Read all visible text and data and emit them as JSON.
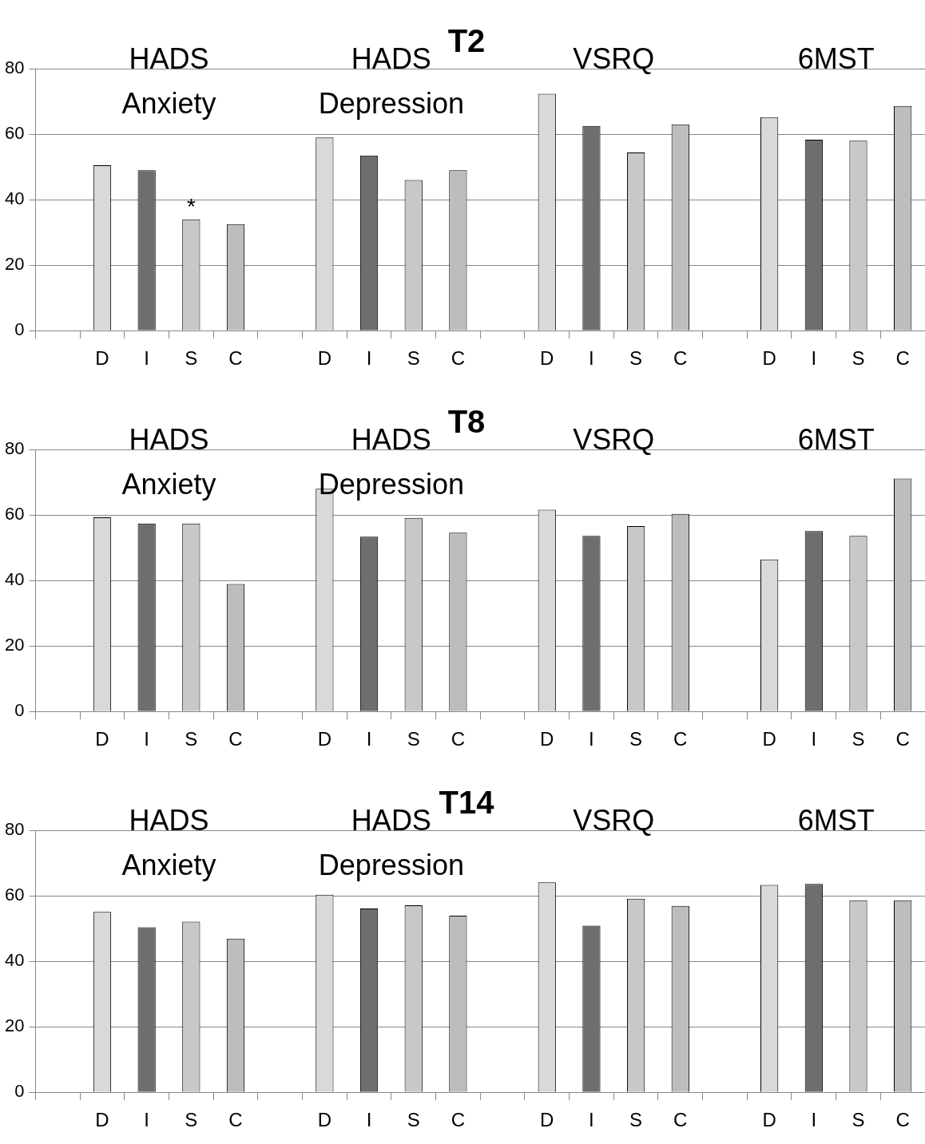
{
  "chart_data": [
    {
      "type": "bar",
      "title": "T2",
      "categories": [
        null,
        "D",
        "I",
        "S",
        "C",
        null,
        "D",
        "I",
        "S",
        "C",
        null,
        "D",
        "I",
        "S",
        "C",
        null,
        "D",
        "I",
        "S",
        "C"
      ],
      "series": [
        {
          "values": [
            null,
            50.5,
            49,
            34,
            32.5,
            null,
            59,
            53.5,
            46,
            49,
            null,
            72.3,
            62.5,
            54.4,
            63,
            null,
            65.2,
            58.3,
            58,
            68.6
          ],
          "colors": [
            null,
            "#d9d9d9",
            "#6e6e6e",
            "#c8c8c8",
            "#bdbdbd",
            null,
            "#d9d9d9",
            "#6e6e6e",
            "#c8c8c8",
            "#bdbdbd",
            null,
            "#d9d9d9",
            "#6e6e6e",
            "#c8c8c8",
            "#bdbdbd",
            null,
            "#d9d9d9",
            "#6e6e6e",
            "#c8c8c8",
            "#bdbdbd"
          ]
        }
      ],
      "ylim": [
        0,
        80
      ],
      "yticks": [
        0,
        20,
        40,
        60,
        80
      ],
      "grid": "y",
      "legend": false,
      "annotations": [
        "HADS Anxiety",
        "HADS Depression",
        "VSRQ",
        "6MST",
        {
          "text": "*",
          "x": "S",
          "y": 34
        }
      ]
    },
    {
      "type": "bar",
      "title": "T8",
      "categories": [
        null,
        "D",
        "I",
        "S",
        "C",
        null,
        "D",
        "I",
        "S",
        "C",
        null,
        "D",
        "I",
        "S",
        "C",
        null,
        "D",
        "I",
        "S",
        "C"
      ],
      "series": [
        {
          "values": [
            null,
            59.3,
            57.4,
            57.4,
            38.9,
            null,
            68,
            53.4,
            59.1,
            54.6,
            null,
            61.6,
            53.6,
            56.6,
            60.3,
            null,
            46.4,
            55.1,
            53.6,
            71.1
          ],
          "colors": [
            null,
            "#d9d9d9",
            "#6e6e6e",
            "#c8c8c8",
            "#bdbdbd",
            null,
            "#d9d9d9",
            "#6e6e6e",
            "#c8c8c8",
            "#bdbdbd",
            null,
            "#d9d9d9",
            "#6e6e6e",
            "#c8c8c8",
            "#bdbdbd",
            null,
            "#d9d9d9",
            "#6e6e6e",
            "#c8c8c8",
            "#bdbdbd"
          ]
        }
      ],
      "ylim": [
        0,
        80
      ],
      "yticks": [
        0,
        20,
        40,
        60,
        80
      ],
      "grid": "y",
      "legend": false,
      "annotations": [
        "HADS Anxiety",
        "HADS Depression",
        "VSRQ",
        "6MST"
      ]
    },
    {
      "type": "bar",
      "title": "T14",
      "categories": [
        null,
        "D",
        "I",
        "S",
        "C",
        null,
        "D",
        "I",
        "S",
        "C",
        null,
        "D",
        "I",
        "S",
        "C",
        null,
        "D",
        "I",
        "S",
        "C"
      ],
      "series": [
        {
          "values": [
            null,
            55.1,
            50.4,
            52.1,
            46.9,
            null,
            60.3,
            56.1,
            57.1,
            53.9,
            null,
            64.1,
            50.9,
            59.1,
            56.9,
            null,
            63.3,
            63.6,
            58.6,
            58.6
          ],
          "colors": [
            null,
            "#d9d9d9",
            "#6e6e6e",
            "#c8c8c8",
            "#bdbdbd",
            null,
            "#d9d9d9",
            "#6e6e6e",
            "#c8c8c8",
            "#bdbdbd",
            null,
            "#d9d9d9",
            "#6e6e6e",
            "#c8c8c8",
            "#bdbdbd",
            null,
            "#d9d9d9",
            "#6e6e6e",
            "#c8c8c8",
            "#bdbdbd"
          ]
        }
      ],
      "ylim": [
        0,
        80
      ],
      "yticks": [
        0,
        20,
        40,
        60,
        80
      ],
      "grid": "y",
      "legend": false,
      "annotations": [
        "HADS Anxiety",
        "HADS Depression",
        "VSRQ",
        "6MST"
      ]
    }
  ]
}
